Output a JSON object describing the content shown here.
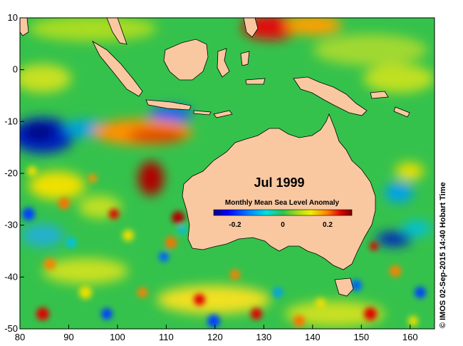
{
  "map": {
    "month_label": "Jul 1999",
    "colorbar": {
      "title": "Monthly Mean Sea Level Anomaly",
      "ticks": [
        "-0.2",
        "0",
        "0.2"
      ],
      "range": [
        -0.3,
        0.3
      ],
      "colors": [
        "#00007f",
        "#0000ff",
        "#0080ff",
        "#00e0e0",
        "#20c060",
        "#80d020",
        "#f0f000",
        "#ff8000",
        "#e00000",
        "#700000"
      ]
    },
    "credit": "© IMOS 02-Sep-2015 14:40 Hobart Time",
    "x_ticks": [
      "80",
      "90",
      "100",
      "110",
      "120",
      "130",
      "140",
      "150",
      "160"
    ],
    "y_ticks": [
      "10",
      "0",
      "-10",
      "-20",
      "-30",
      "-40",
      "-50"
    ],
    "lon_range": [
      80,
      165
    ],
    "lat_range": [
      -50,
      10
    ],
    "land_color": "#f9c8a0",
    "ocean_base_color": "#33c24a"
  }
}
